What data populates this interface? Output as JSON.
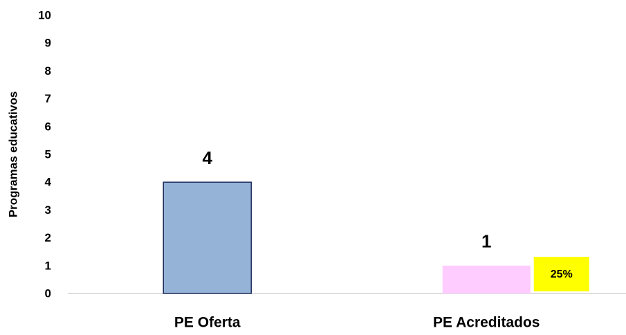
{
  "chart_data": {
    "type": "bar",
    "y_label": "Programas educativos",
    "categories": [
      "PE Oferta",
      "PE Acreditados"
    ],
    "values": [
      4,
      1
    ],
    "colors": [
      "#95b3d7",
      "#ffccff"
    ],
    "ylim": [
      0,
      10
    ],
    "yticks": [
      0,
      1,
      2,
      3,
      4,
      5,
      6,
      7,
      8,
      9,
      10
    ],
    "grid": false,
    "annotations": [
      {
        "text": "25%",
        "color": "#ffff00"
      }
    ]
  }
}
